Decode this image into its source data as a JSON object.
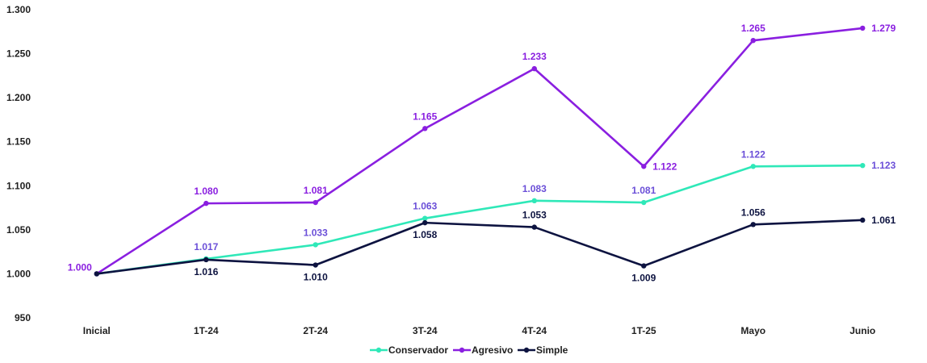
{
  "chart_data": {
    "type": "line",
    "categories": [
      "Inicial",
      "1T-24",
      "2T-24",
      "3T-24",
      "4T-24",
      "1T-25",
      "Mayo",
      "Junio"
    ],
    "ylim": [
      950,
      1300
    ],
    "yticks": [
      950,
      1000,
      1050,
      1100,
      1150,
      1200,
      1250,
      1300
    ],
    "ytick_labels": [
      "950",
      "1.000",
      "1.050",
      "1.100",
      "1.150",
      "1.200",
      "1.250",
      "1.300"
    ],
    "grid": false,
    "legend": "bottom",
    "series": [
      {
        "name": "Conservador",
        "color": "#2fe8b8",
        "label_color": "#6b4fd8",
        "values": [
          1000,
          1017,
          1033,
          1063,
          1083,
          1081,
          1122,
          1123
        ],
        "labels": [
          "",
          "1.017",
          "1.033",
          "1.063",
          "1.083",
          "1.081",
          "1.122",
          "1.123"
        ],
        "label_pos": [
          "above",
          "above",
          "above",
          "above",
          "above",
          "above",
          "above",
          "right"
        ]
      },
      {
        "name": "Agresivo",
        "color": "#8a1fe0",
        "label_color": "#8a1fe0",
        "values": [
          1000,
          1080,
          1081,
          1165,
          1233,
          1122,
          1265,
          1279
        ],
        "labels": [
          "1.000",
          "1.080",
          "1.081",
          "1.165",
          "1.233",
          "1.122",
          "1.265",
          "1.279"
        ],
        "label_pos": [
          "left",
          "above",
          "above",
          "above",
          "above",
          "right",
          "above",
          "right"
        ]
      },
      {
        "name": "Simple",
        "color": "#0d1340",
        "label_color": "#0d1340",
        "values": [
          1000,
          1016,
          1010,
          1058,
          1053,
          1009,
          1056,
          1061
        ],
        "labels": [
          "",
          "1.016",
          "1.010",
          "1.058",
          "1.053",
          "1.009",
          "1.056",
          "1.061"
        ],
        "label_pos": [
          "below",
          "below",
          "below",
          "below",
          "above",
          "below",
          "above",
          "right"
        ]
      }
    ]
  }
}
